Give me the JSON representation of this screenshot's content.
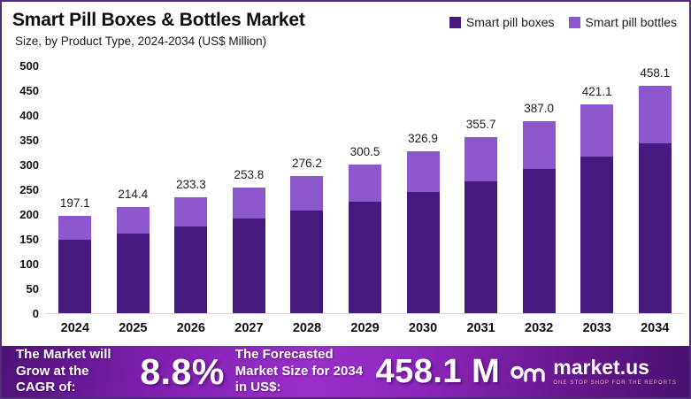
{
  "header": {
    "title": "Smart Pill Boxes & Bottles Market",
    "subtitle": "Size, by Product Type, 2024-2034 (US$ Million)"
  },
  "legend": [
    {
      "label": "Smart pill boxes",
      "color": "#45197d"
    },
    {
      "label": "Smart pill bottles",
      "color": "#8c56cd"
    }
  ],
  "chart_data": {
    "type": "bar",
    "stacked": true,
    "title": "Smart Pill Boxes & Bottles Market Size, by Product Type, 2024-2034 (US$ Million)",
    "categories": [
      "2024",
      "2025",
      "2026",
      "2027",
      "2028",
      "2029",
      "2030",
      "2031",
      "2032",
      "2033",
      "2034"
    ],
    "series": [
      {
        "name": "Smart pill boxes",
        "color": "#45197d",
        "values": [
          147.8,
          160.8,
          175.0,
          190.4,
          207.2,
          225.4,
          245.2,
          266.8,
          290.3,
          315.8,
          343.6
        ]
      },
      {
        "name": "Smart pill bottles",
        "color": "#8c56cd",
        "values": [
          49.3,
          53.6,
          58.3,
          63.4,
          69.0,
          75.1,
          81.7,
          88.9,
          96.7,
          105.3,
          114.5
        ]
      }
    ],
    "totals": [
      197.1,
      214.4,
      233.3,
      253.8,
      276.2,
      300.5,
      326.9,
      355.7,
      387.0,
      421.1,
      458.1
    ],
    "xlabel": "",
    "ylabel": "",
    "ylim": [
      0,
      500
    ],
    "yticks": [
      0,
      50,
      100,
      150,
      200,
      250,
      300,
      350,
      400,
      450,
      500
    ],
    "grid": false,
    "legend_position": "top-right"
  },
  "banner": {
    "cagr_label": "The Market will Grow at the CAGR of:",
    "cagr_value": "8.8%",
    "forecast_label": "The Forecasted Market Size for 2034 in US$:",
    "forecast_value": "458.1 M",
    "brand": "market.us",
    "brand_tagline": "ONE STOP SHOP FOR THE REPORTS"
  }
}
